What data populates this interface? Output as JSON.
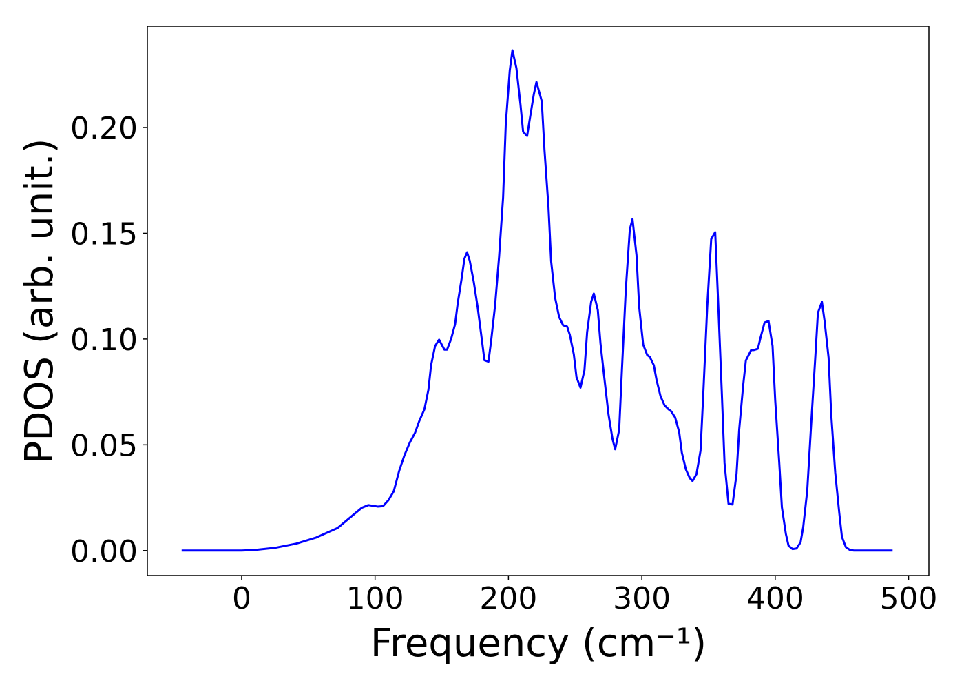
{
  "chart_data": {
    "type": "line",
    "xlabel": "Frequency (cm⁻¹)",
    "ylabel": "PDOS (arb. unit.)",
    "color": "#0000ff",
    "x": [
      -45,
      0,
      10,
      25,
      41,
      56,
      72,
      82,
      90,
      95,
      102,
      106,
      110,
      114,
      118,
      122,
      126,
      130,
      133,
      137,
      140,
      142,
      145,
      148,
      152,
      154,
      157,
      160,
      162,
      165,
      167,
      169,
      171,
      174,
      177,
      180,
      182,
      185,
      187,
      190,
      193,
      196,
      198,
      201,
      203,
      206,
      209,
      211,
      214,
      216,
      219,
      221,
      225,
      227,
      230,
      232,
      235,
      238,
      241,
      244,
      246,
      249,
      251,
      254,
      257,
      259,
      262,
      264,
      267,
      269,
      272,
      275,
      278,
      280,
      283,
      285,
      288,
      291,
      293,
      296,
      298,
      301,
      304,
      306,
      309,
      311,
      314,
      317,
      320,
      322,
      325,
      328,
      330,
      333,
      336,
      338,
      341,
      344,
      346,
      349,
      352,
      355,
      357,
      360,
      362,
      365,
      368,
      371,
      373,
      376,
      378,
      382,
      384,
      387,
      389,
      392,
      395,
      398,
      400,
      403,
      405,
      408,
      410,
      413,
      416,
      419,
      421,
      424,
      427,
      430,
      432,
      435,
      437,
      440,
      442,
      445,
      448,
      450,
      453,
      456,
      459,
      488
    ],
    "values": [
      0,
      0,
      0.0003,
      0.0013,
      0.0033,
      0.0062,
      0.0107,
      0.016,
      0.0202,
      0.0215,
      0.0208,
      0.021,
      0.0238,
      0.028,
      0.0375,
      0.045,
      0.051,
      0.0557,
      0.061,
      0.0668,
      0.076,
      0.0876,
      0.0967,
      0.0997,
      0.095,
      0.095,
      0.1,
      0.107,
      0.117,
      0.129,
      0.138,
      0.141,
      0.137,
      0.127,
      0.1147,
      0.1,
      0.09,
      0.0893,
      0.099,
      0.116,
      0.139,
      0.167,
      0.2016,
      0.227,
      0.2365,
      0.228,
      0.211,
      0.198,
      0.196,
      0.204,
      0.2156,
      0.2215,
      0.2124,
      0.1896,
      0.1625,
      0.1368,
      0.1195,
      0.1104,
      0.1065,
      0.1059,
      0.102,
      0.0928,
      0.082,
      0.077,
      0.0853,
      0.1033,
      0.1176,
      0.1215,
      0.1137,
      0.098,
      0.081,
      0.0645,
      0.0528,
      0.0479,
      0.057,
      0.0844,
      0.1235,
      0.1518,
      0.1567,
      0.1397,
      0.1153,
      0.0974,
      0.0925,
      0.0915,
      0.0876,
      0.0808,
      0.073,
      0.0687,
      0.0668,
      0.0658,
      0.0629,
      0.056,
      0.0463,
      0.0384,
      0.0342,
      0.0329,
      0.0362,
      0.0472,
      0.073,
      0.115,
      0.1472,
      0.1505,
      0.1208,
      0.074,
      0.0414,
      0.0221,
      0.0218,
      0.0362,
      0.0573,
      0.0782,
      0.0899,
      0.0948,
      0.0948,
      0.0954,
      0.1007,
      0.1078,
      0.1085,
      0.0967,
      0.071,
      0.0417,
      0.0205,
      0.0078,
      0.0023,
      0.0007,
      0.001,
      0.0039,
      0.0111,
      0.0283,
      0.0603,
      0.0909,
      0.1124,
      0.1176,
      0.1085,
      0.0912,
      0.0642,
      0.0368,
      0.0179,
      0.0065,
      0.0016,
      0.0003,
      0,
      0
    ],
    "xlim": [
      -70.7,
      515.2
    ],
    "ylim": [
      -0.0118,
      0.2479
    ],
    "xticks": [
      0,
      100,
      200,
      300,
      400,
      500
    ],
    "yticks": [
      {
        "value": 0,
        "label": "0.00"
      },
      {
        "value": 0.05,
        "label": "0.05"
      },
      {
        "value": 0.1,
        "label": "0.10"
      },
      {
        "value": 0.15,
        "label": "0.15"
      },
      {
        "value": 0.2,
        "label": "0.20"
      }
    ]
  }
}
